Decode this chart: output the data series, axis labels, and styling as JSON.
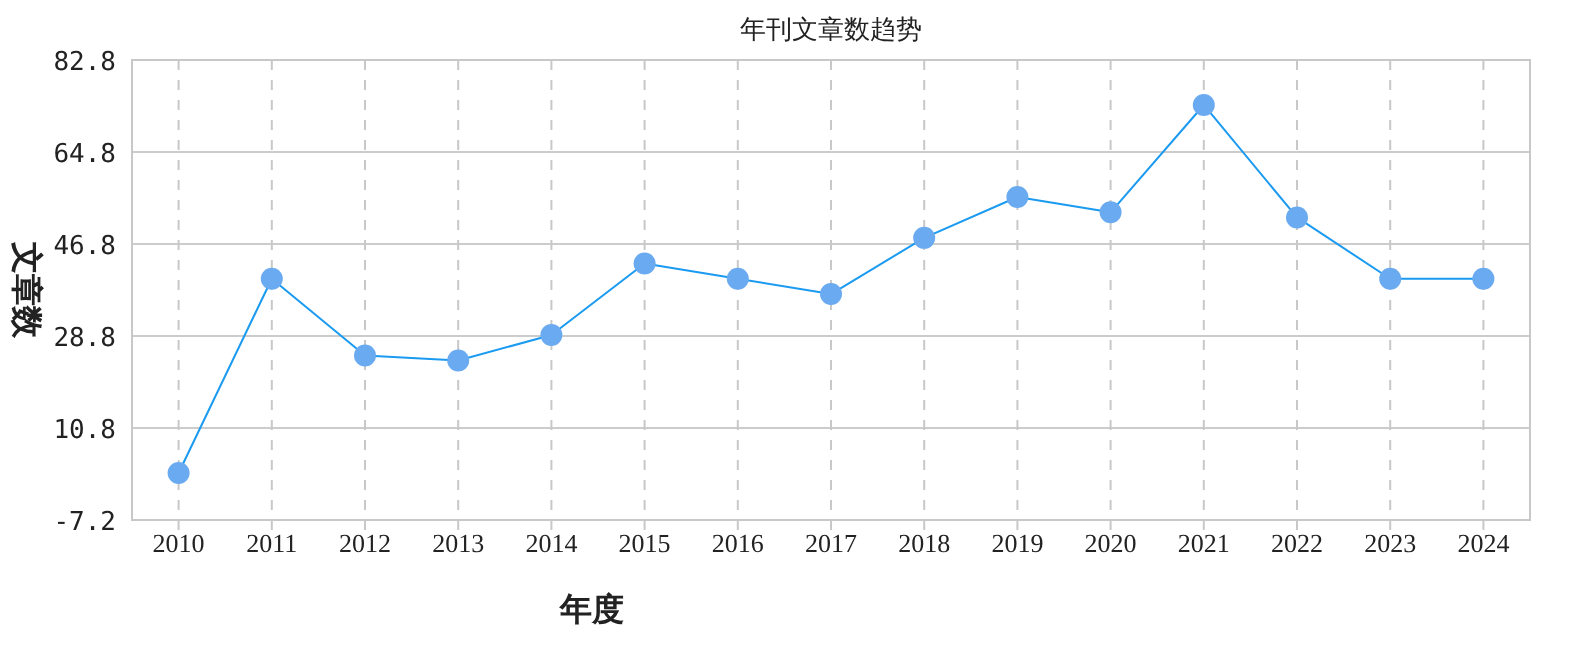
{
  "chart_data": {
    "type": "line",
    "title": "年刊文章数趋势",
    "xlabel": "年度",
    "ylabel": "文章数",
    "categories": [
      "2010",
      "2011",
      "2012",
      "2013",
      "2014",
      "2015",
      "2016",
      "2017",
      "2018",
      "2019",
      "2020",
      "2021",
      "2022",
      "2023",
      "2024"
    ],
    "series": [
      {
        "color": "#1a9af0",
        "values": [
          2,
          40,
          25,
          24,
          29,
          43,
          40,
          37,
          48,
          56,
          53,
          74,
          52,
          40,
          40
        ]
      }
    ],
    "ylim": [
      -7.2,
      82.8
    ],
    "yticks": [
      -7.2,
      10.8,
      28.8,
      46.8,
      64.8,
      82.8
    ],
    "grid": true,
    "marker": "circle",
    "line_style": "solid"
  }
}
